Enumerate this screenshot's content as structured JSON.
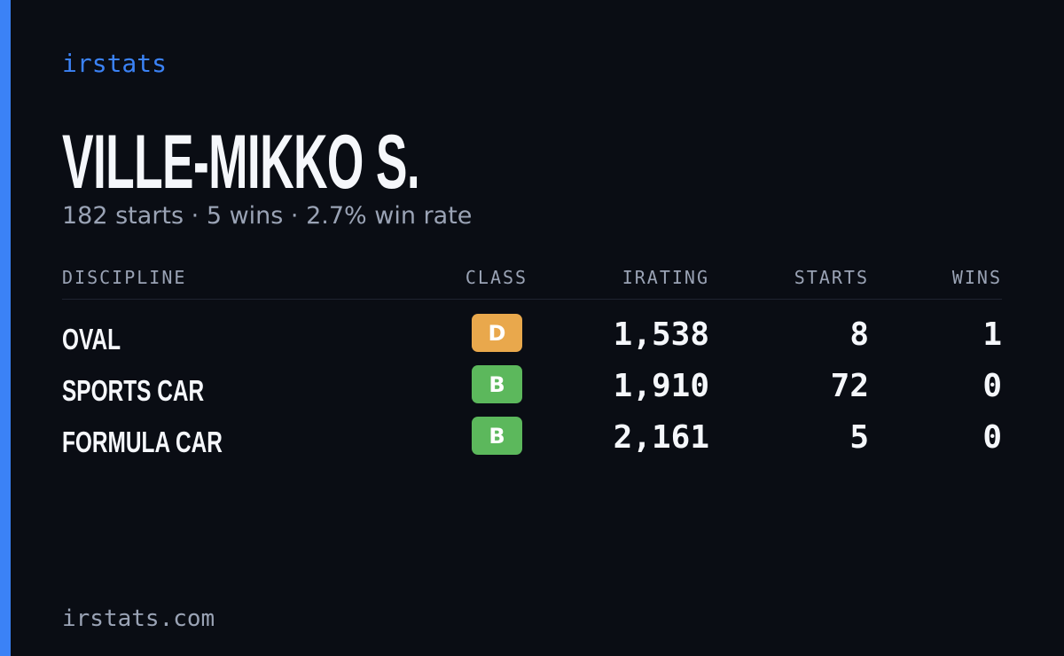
{
  "brand": "irstats",
  "driver": {
    "name": "VILLE-MIKKO S.",
    "summary": "182 starts · 5 wins · 2.7% win rate"
  },
  "table": {
    "headers": [
      "DISCIPLINE",
      "CLASS",
      "IRATING",
      "STARTS",
      "WINS"
    ],
    "rows": [
      {
        "discipline": "OVAL",
        "class": "D",
        "badge_color": "#e9a84c",
        "irating": "1,538",
        "starts": "8",
        "wins": "1"
      },
      {
        "discipline": "SPORTS CAR",
        "class": "B",
        "badge_color": "#5cb85c",
        "irating": "1,910",
        "starts": "72",
        "wins": "0"
      },
      {
        "discipline": "FORMULA CAR",
        "class": "B",
        "badge_color": "#5cb85c",
        "irating": "2,161",
        "starts": "5",
        "wins": "0"
      }
    ]
  },
  "footer": "irstats.com"
}
